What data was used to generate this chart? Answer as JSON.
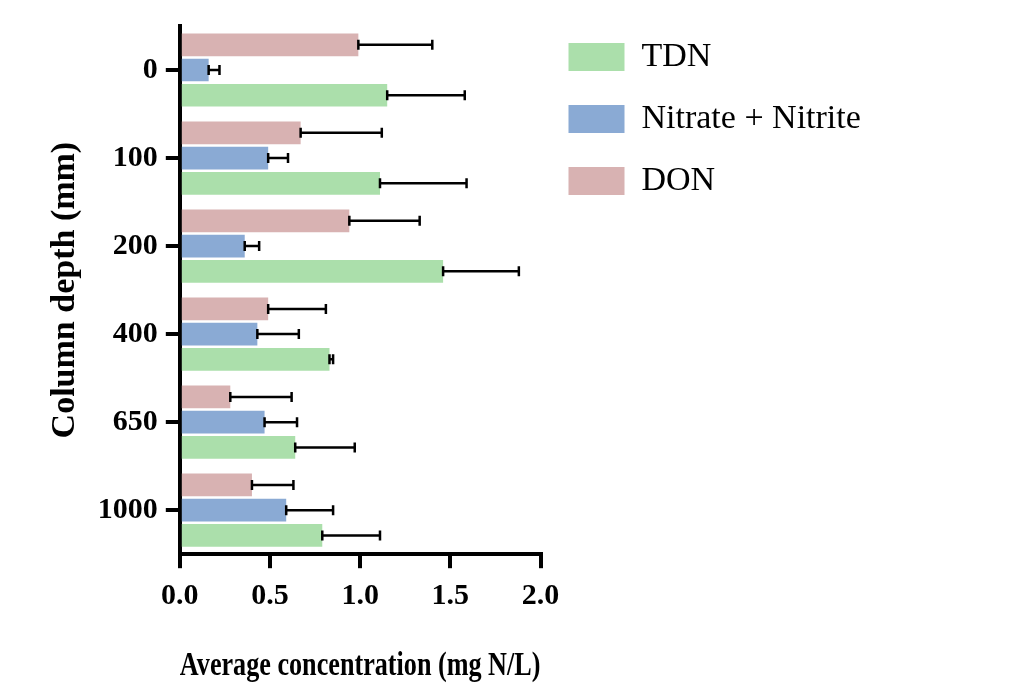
{
  "chart_data": {
    "type": "bar",
    "orientation": "horizontal",
    "xlabel": "Average concentration (mg N/L)",
    "ylabel": "Column depth (mm)",
    "categories": [
      "0",
      "100",
      "200",
      "400",
      "650",
      "1000"
    ],
    "xlim": [
      0,
      2
    ],
    "xticks": [
      {
        "value": 0,
        "label": "0.0"
      },
      {
        "value": 0.5,
        "label": "0.5"
      },
      {
        "value": 1,
        "label": "1.0"
      },
      {
        "value": 1.5,
        "label": "1.5"
      },
      {
        "value": 2,
        "label": "2.0"
      }
    ],
    "grid": false,
    "legend": "top right",
    "series": [
      {
        "name": "TDN",
        "color": "#abdfab",
        "values": [
          1.15,
          1.11,
          1.46,
          0.83,
          0.64,
          0.79
        ],
        "errors": [
          [
            1.15,
            1.58
          ],
          [
            1.11,
            1.59
          ],
          [
            1.46,
            1.88
          ],
          [
            0.83,
            0.85
          ],
          [
            0.64,
            0.97
          ],
          [
            0.79,
            1.11
          ]
        ]
      },
      {
        "name": "Nitrate + Nitrite",
        "color": "#8aaad4",
        "values": [
          0.16,
          0.49,
          0.36,
          0.43,
          0.47,
          0.59
        ],
        "errors": [
          [
            0.16,
            0.22
          ],
          [
            0.49,
            0.6
          ],
          [
            0.36,
            0.44
          ],
          [
            0.43,
            0.66
          ],
          [
            0.47,
            0.65
          ],
          [
            0.59,
            0.85
          ]
        ]
      },
      {
        "name": "DON",
        "color": "#d8b2b2",
        "values": [
          0.99,
          0.67,
          0.94,
          0.49,
          0.28,
          0.4
        ],
        "errors": [
          [
            0.99,
            1.4
          ],
          [
            0.67,
            1.12
          ],
          [
            0.94,
            1.33
          ],
          [
            0.49,
            0.81
          ],
          [
            0.28,
            0.62
          ],
          [
            0.4,
            0.63
          ]
        ]
      }
    ]
  }
}
